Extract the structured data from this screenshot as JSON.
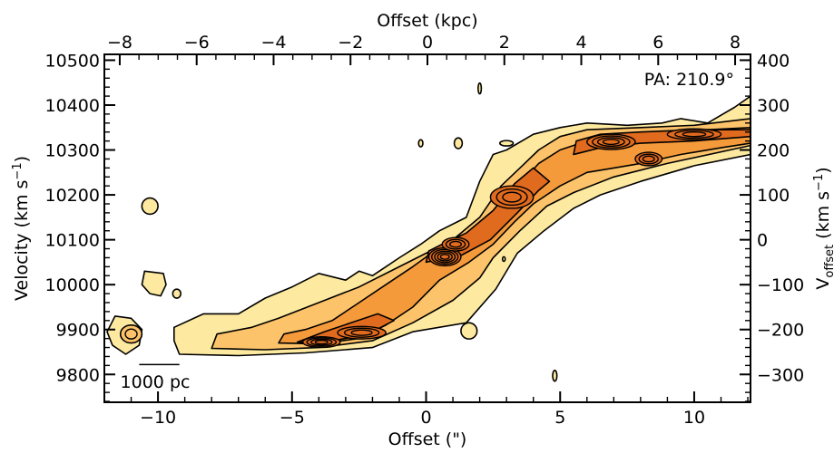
{
  "chart_data": {
    "type": "contour",
    "title": "",
    "annotation": "PA: 210.9°",
    "scalebar_label": "1000 pc",
    "xlabel": "Offset (\")",
    "x2label": "Offset (kpc)",
    "ylabel_left": {
      "main": "Velocity (km s",
      "sup": "−1",
      "close": ")"
    },
    "ylabel_right": {
      "main": "V",
      "sub": "offset",
      "mid": " (km s",
      "sup": "−1",
      "close": ")"
    },
    "xlim": [
      -12,
      12.1
    ],
    "ylim": [
      9738,
      10513
    ],
    "x2lim": [
      -8.4,
      8.4
    ],
    "y2lim": [
      -362,
      413
    ],
    "x_ticks": [
      -10,
      -5,
      0,
      5,
      10
    ],
    "x_ticklabels": [
      "−10",
      "−5",
      "0",
      "5",
      "10"
    ],
    "x2_ticks": [
      -8,
      -6,
      -4,
      -2,
      0,
      2,
      4,
      6,
      8
    ],
    "x2_ticklabels": [
      "−8",
      "−6",
      "−4",
      "−2",
      "0",
      "2",
      "4",
      "6",
      "8"
    ],
    "y_ticks": [
      9800,
      9900,
      10000,
      10100,
      10200,
      10300,
      10400,
      10500
    ],
    "y_ticklabels": [
      "9800",
      "9900",
      "10000",
      "10100",
      "10200",
      "10300",
      "10400",
      "10500"
    ],
    "y2_ticks": [
      -300,
      -200,
      -100,
      0,
      100,
      200,
      300,
      400
    ],
    "y2_ticklabels": [
      "−300",
      "−200",
      "−100",
      "0",
      "100",
      "200",
      "300",
      "400"
    ],
    "colors": {
      "light": "#fde9a0",
      "mid": "#fcc36a",
      "orange": "#f59a3a",
      "dark": "#e06a1e",
      "line": "#000000"
    },
    "contour_levels": [
      {
        "name": "outer",
        "fill": "light",
        "points": [
          [
            -9.2,
            9845
          ],
          [
            -7,
            9842
          ],
          [
            -4.5,
            9848
          ],
          [
            -2,
            9860
          ],
          [
            -0.5,
            9895
          ],
          [
            1.5,
            9915
          ],
          [
            2.6,
            9990
          ],
          [
            3.4,
            10070
          ],
          [
            4.4,
            10120
          ],
          [
            5.5,
            10170
          ],
          [
            6.5,
            10200
          ],
          [
            8,
            10230
          ],
          [
            10,
            10265
          ],
          [
            12.1,
            10290
          ],
          [
            12.1,
            10420
          ],
          [
            11.5,
            10395
          ],
          [
            10.5,
            10360
          ],
          [
            9.5,
            10370
          ],
          [
            8.8,
            10360
          ],
          [
            7.5,
            10355
          ],
          [
            6,
            10360
          ],
          [
            5,
            10350
          ],
          [
            4,
            10335
          ],
          [
            3,
            10300
          ],
          [
            2.5,
            10290
          ],
          [
            2,
            10230
          ],
          [
            1.5,
            10150
          ],
          [
            0.5,
            10120
          ],
          [
            -0.2,
            10090
          ],
          [
            -1,
            10060
          ],
          [
            -1.5,
            10040
          ],
          [
            -2,
            10020
          ],
          [
            -2.5,
            10030
          ],
          [
            -3,
            10010
          ],
          [
            -4,
            10025
          ],
          [
            -5,
            9995
          ],
          [
            -6,
            9970
          ],
          [
            -7,
            9935
          ],
          [
            -8.3,
            9935
          ],
          [
            -9.4,
            9905
          ],
          [
            -9.4,
            9875
          ]
        ]
      },
      {
        "name": "left-blob",
        "fill": "light",
        "points": [
          [
            -10.5,
            10030
          ],
          [
            -9.8,
            10025
          ],
          [
            -9.7,
            10000
          ],
          [
            -9.9,
            9975
          ],
          [
            -10.3,
            9980
          ],
          [
            -10.6,
            10000
          ]
        ]
      },
      {
        "name": "edge-blob",
        "fill": "light",
        "points": [
          [
            -11.6,
            9930
          ],
          [
            -11,
            9925
          ],
          [
            -10.6,
            9900
          ],
          [
            -10.7,
            9865
          ],
          [
            -11.2,
            9845
          ],
          [
            -11.7,
            9865
          ],
          [
            -11.9,
            9895
          ]
        ]
      },
      {
        "name": "mid-1",
        "fill": "mid",
        "points": [
          [
            -8,
            9858
          ],
          [
            -6,
            9855
          ],
          [
            -4,
            9860
          ],
          [
            -2,
            9875
          ],
          [
            -0.5,
            9915
          ],
          [
            1,
            9965
          ],
          [
            2,
            10015
          ],
          [
            2.5,
            10060
          ],
          [
            3.5,
            10120
          ],
          [
            4.5,
            10175
          ],
          [
            5.5,
            10205
          ],
          [
            7,
            10240
          ],
          [
            9,
            10270
          ],
          [
            12.1,
            10310
          ],
          [
            12.1,
            10370
          ],
          [
            10,
            10355
          ],
          [
            8,
            10350
          ],
          [
            6,
            10345
          ],
          [
            5,
            10330
          ],
          [
            4.2,
            10300
          ],
          [
            3.5,
            10260
          ],
          [
            2.8,
            10220
          ],
          [
            2,
            10150
          ],
          [
            1,
            10100
          ],
          [
            0,
            10070
          ],
          [
            -1,
            10040
          ],
          [
            -2.5,
            9995
          ],
          [
            -4,
            9960
          ],
          [
            -5.5,
            9925
          ],
          [
            -6.5,
            9905
          ],
          [
            -7.8,
            9890
          ]
        ]
      },
      {
        "name": "mid-2",
        "fill": "orange",
        "points": [
          [
            -5.5,
            9870
          ],
          [
            -4,
            9868
          ],
          [
            -2.5,
            9880
          ],
          [
            -1.5,
            9910
          ],
          [
            -0.5,
            9950
          ],
          [
            0.5,
            10010
          ],
          [
            1.6,
            10050
          ],
          [
            2.5,
            10090
          ],
          [
            3.3,
            10140
          ],
          [
            4,
            10180
          ],
          [
            5,
            10220
          ],
          [
            6,
            10250
          ],
          [
            7,
            10260
          ],
          [
            8,
            10270
          ],
          [
            9.5,
            10290
          ],
          [
            11,
            10305
          ],
          [
            12.1,
            10315
          ],
          [
            12.1,
            10350
          ],
          [
            10.5,
            10345
          ],
          [
            9,
            10335
          ],
          [
            7.5,
            10330
          ],
          [
            6,
            10320
          ],
          [
            5,
            10300
          ],
          [
            4.2,
            10270
          ],
          [
            3.6,
            10230
          ],
          [
            2.8,
            10175
          ],
          [
            2,
            10130
          ],
          [
            1,
            10095
          ],
          [
            0.2,
            10070
          ],
          [
            -0.5,
            10040
          ],
          [
            -1.5,
            10000
          ],
          [
            -2.5,
            9960
          ],
          [
            -3.5,
            9920
          ],
          [
            -4.5,
            9900
          ],
          [
            -5.3,
            9890
          ]
        ]
      },
      {
        "name": "mid-3",
        "fill": "dark",
        "points": [
          [
            -4.8,
            9872
          ],
          [
            -4,
            9870
          ],
          [
            -3,
            9880
          ],
          [
            -2,
            9895
          ],
          [
            -1.2,
            9920
          ],
          [
            -1.8,
            9935
          ],
          [
            -2.8,
            9915
          ],
          [
            -3.8,
            9895
          ]
        ]
      },
      {
        "name": "mid-4",
        "fill": "dark",
        "points": [
          [
            0,
            10050
          ],
          [
            1.3,
            10065
          ],
          [
            2.4,
            10100
          ],
          [
            3.4,
            10160
          ],
          [
            4.2,
            10210
          ],
          [
            4.6,
            10230
          ],
          [
            4,
            10260
          ],
          [
            3.3,
            10225
          ],
          [
            2.5,
            10165
          ],
          [
            1.5,
            10115
          ],
          [
            0.6,
            10090
          ],
          [
            0.1,
            10075
          ]
        ]
      },
      {
        "name": "mid-5",
        "fill": "dark",
        "points": [
          [
            5.5,
            10290
          ],
          [
            6.5,
            10305
          ],
          [
            8,
            10315
          ],
          [
            10,
            10320
          ],
          [
            12.1,
            10330
          ],
          [
            12.1,
            10345
          ],
          [
            10,
            10345
          ],
          [
            8,
            10340
          ],
          [
            6.5,
            10335
          ],
          [
            5.6,
            10320
          ]
        ]
      }
    ],
    "peaks": [
      {
        "name": "core-1",
        "x": -3.9,
        "y": 9872,
        "rx": 0.7,
        "ry": 12,
        "rings": 4
      },
      {
        "name": "core-2",
        "x": -2.4,
        "y": 9893,
        "rx": 0.9,
        "ry": 14,
        "rings": 3
      },
      {
        "name": "core-3",
        "x": 0.7,
        "y": 10062,
        "rx": 0.6,
        "ry": 20,
        "rings": 5
      },
      {
        "name": "core-4",
        "x": 1.1,
        "y": 10090,
        "rx": 0.5,
        "ry": 15,
        "rings": 3
      },
      {
        "name": "core-5",
        "x": 3.2,
        "y": 10195,
        "rx": 0.8,
        "ry": 25,
        "rings": 3
      },
      {
        "name": "core-6",
        "x": 6.9,
        "y": 10318,
        "rx": 0.9,
        "ry": 17,
        "rings": 4
      },
      {
        "name": "core-7",
        "x": 8.3,
        "y": 10280,
        "rx": 0.5,
        "ry": 15,
        "rings": 3
      },
      {
        "name": "core-8",
        "x": 10.0,
        "y": 10335,
        "rx": 1.0,
        "ry": 12,
        "rings": 3
      }
    ],
    "isolated_blobs": [
      {
        "name": "blob-1",
        "x": -10.3,
        "y": 10175,
        "rx": 0.3,
        "ry": 18,
        "fill": "light"
      },
      {
        "name": "blob-2",
        "x": -11.0,
        "y": 9890,
        "rx": 0.4,
        "ry": 20,
        "fill": "mid"
      },
      {
        "name": "blob-3",
        "x": -9.3,
        "y": 9980,
        "rx": 0.15,
        "ry": 10,
        "fill": "light"
      },
      {
        "name": "blob-4",
        "x": -0.2,
        "y": 10315,
        "rx": 0.08,
        "ry": 8,
        "fill": "light"
      },
      {
        "name": "blob-5",
        "x": 1.2,
        "y": 10315,
        "rx": 0.15,
        "ry": 12,
        "fill": "light"
      },
      {
        "name": "blob-6",
        "x": 2.0,
        "y": 10437,
        "rx": 0.06,
        "ry": 12,
        "fill": "light"
      },
      {
        "name": "blob-7",
        "x": 1.6,
        "y": 9897,
        "rx": 0.3,
        "ry": 18,
        "fill": "light"
      },
      {
        "name": "blob-8",
        "x": 4.8,
        "y": 9797,
        "rx": 0.08,
        "ry": 12,
        "fill": "light"
      },
      {
        "name": "blob-9",
        "x": 2.9,
        "y": 10057,
        "rx": 0.05,
        "ry": 5,
        "fill": "light"
      },
      {
        "name": "blob-10",
        "x": 3.0,
        "y": 10315,
        "rx": 0.25,
        "ry": 6,
        "fill": "light"
      }
    ],
    "scalebar": {
      "x_start": -10.7,
      "x_end": -9.2,
      "y": 9822
    }
  }
}
